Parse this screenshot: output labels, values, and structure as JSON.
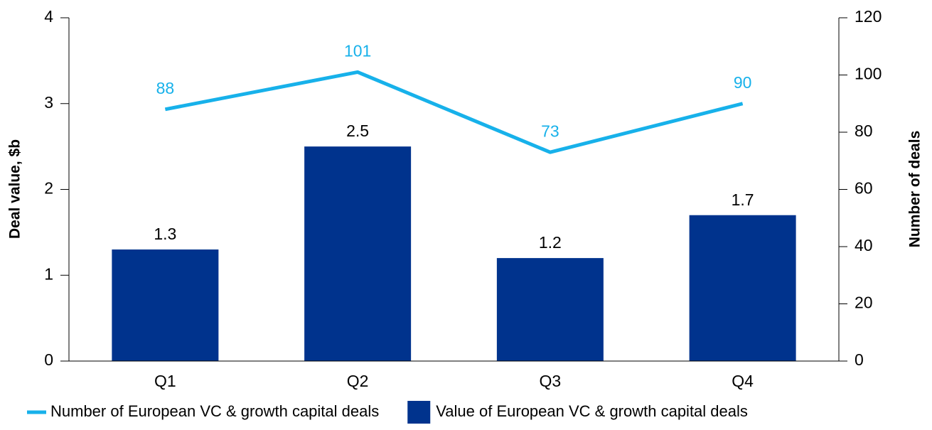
{
  "chart_data": {
    "type": "bar",
    "categories": [
      "Q1",
      "Q2",
      "Q3",
      "Q4"
    ],
    "ylabel": "Deal value, $b",
    "y2label": "Number of deals",
    "ylim": [
      0,
      4
    ],
    "yticks": [
      0,
      1,
      2,
      3,
      4
    ],
    "y2lim": [
      0,
      120
    ],
    "y2ticks": [
      0,
      20,
      40,
      60,
      80,
      100,
      120
    ],
    "legend": "bottom",
    "series": [
      {
        "name": "Number of European VC & growth capital deals",
        "type": "line",
        "axis": "y2",
        "color": "#17b1ea",
        "values": [
          88,
          101,
          73,
          90
        ]
      },
      {
        "name": "Value of European VC & growth capital deals",
        "type": "bar",
        "color": "#00338d",
        "values": [
          1.3,
          2.5,
          1.2,
          1.7
        ]
      }
    ]
  }
}
